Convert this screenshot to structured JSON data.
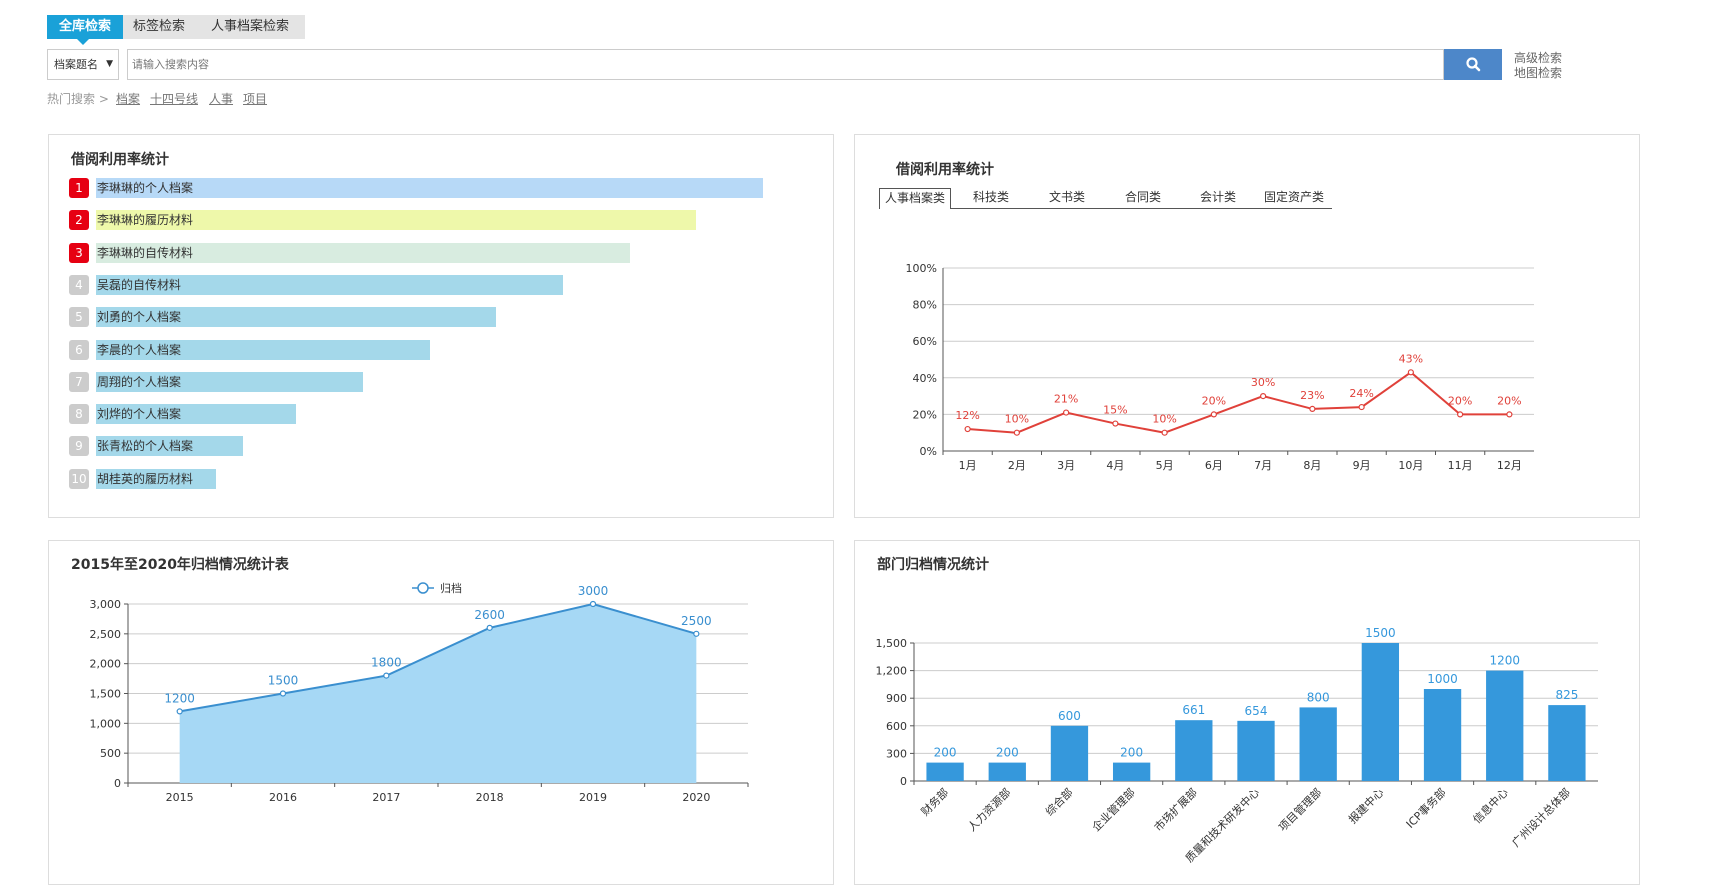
{
  "search": {
    "tabs": [
      {
        "label": "全库检索",
        "active": true
      },
      {
        "label": "标签检索",
        "active": false
      },
      {
        "label": "人事档案检索",
        "active": false
      }
    ],
    "field_select": "档案题名",
    "placeholder": "请输入搜索内容",
    "search_icon": "search-icon",
    "advanced_label": "高级检索",
    "map_label": "地图检索",
    "hot_label": "热门搜索 >",
    "hot_items": [
      "档案",
      "十四号线",
      "人事",
      "项目"
    ]
  },
  "ranking_panel": {
    "title": "借阅利用率统计",
    "items": [
      {
        "rank": "1",
        "label": "李琳琳的个人档案",
        "value": 1.0,
        "bar_color": "#b7d9f7",
        "badge_color": "#e60012"
      },
      {
        "rank": "2",
        "label": "李琳琳的履历材料",
        "value": 0.9,
        "bar_color": "#eef8aa",
        "badge_color": "#e60012"
      },
      {
        "rank": "3",
        "label": "李琳琳的自传材料",
        "value": 0.8,
        "bar_color": "#d8ece0",
        "badge_color": "#e60012"
      },
      {
        "rank": "4",
        "label": "吴磊的自传材料",
        "value": 0.7,
        "bar_color": "#a4d8ea",
        "badge_color": "#cccccc"
      },
      {
        "rank": "5",
        "label": "刘勇的个人档案",
        "value": 0.6,
        "bar_color": "#a4d8ea",
        "badge_color": "#cccccc"
      },
      {
        "rank": "6",
        "label": "李晨的个人档案",
        "value": 0.5,
        "bar_color": "#a4d8ea",
        "badge_color": "#cccccc"
      },
      {
        "rank": "7",
        "label": "周翔的个人档案",
        "value": 0.4,
        "bar_color": "#a4d8ea",
        "badge_color": "#cccccc"
      },
      {
        "rank": "8",
        "label": "刘烨的个人档案",
        "value": 0.3,
        "bar_color": "#a4d8ea",
        "badge_color": "#cccccc"
      },
      {
        "rank": "9",
        "label": "张青松的个人档案",
        "value": 0.22,
        "bar_color": "#a4d8ea",
        "badge_color": "#cccccc"
      },
      {
        "rank": "10",
        "label": "胡桂英的履历材料",
        "value": 0.18,
        "bar_color": "#a4d8ea",
        "badge_color": "#cccccc"
      }
    ]
  },
  "usage_panel": {
    "title": "借阅利用率统计",
    "tabs": [
      {
        "label": "人事档案类",
        "active": true
      },
      {
        "label": "科技类",
        "active": false
      },
      {
        "label": "文书类",
        "active": false
      },
      {
        "label": "合同类",
        "active": false
      },
      {
        "label": "会计类",
        "active": false
      },
      {
        "label": "固定资产类",
        "active": false
      }
    ]
  },
  "archive_panel": {
    "title": "2015年至2020年归档情况统计表"
  },
  "dept_panel": {
    "title": "部门归档情况统计"
  },
  "chart_data": [
    {
      "type": "line",
      "categories": [
        "1月",
        "2月",
        "3月",
        "4月",
        "5月",
        "6月",
        "7月",
        "8月",
        "9月",
        "10月",
        "11月",
        "12月"
      ],
      "values": [
        12,
        10,
        21,
        15,
        10,
        20,
        30,
        23,
        24,
        43,
        20,
        20
      ],
      "data_labels": [
        "12%",
        "10%",
        "21%",
        "15%",
        "10%",
        "20%",
        "30%",
        "23%",
        "24%",
        "43%",
        "20%",
        "20%"
      ],
      "yticks": [
        "0%",
        "20%",
        "40%",
        "60%",
        "80%",
        "100%"
      ],
      "ylim": [
        0,
        100
      ],
      "color": "#e0413a",
      "grid": true
    },
    {
      "type": "area",
      "categories": [
        "2015",
        "2016",
        "2017",
        "2018",
        "2019",
        "2020"
      ],
      "series": [
        {
          "name": "归档",
          "values": [
            1200,
            1500,
            1800,
            2600,
            3000,
            2500
          ]
        }
      ],
      "yticks": [
        "0",
        "500",
        "1,000",
        "1,500",
        "2,000",
        "2,500",
        "3,000"
      ],
      "ylim": [
        0,
        3000
      ],
      "line_color": "#3a8fcf",
      "fill_color": "#a6d8f5",
      "legend": "top-center",
      "grid": true
    },
    {
      "type": "bar",
      "categories": [
        "财务部",
        "人力资源部",
        "综合部",
        "企业管理部",
        "市场扩展部",
        "质量和技术研发中心",
        "项目管理部",
        "报建中心",
        "ICP事务部",
        "信息中心",
        "广州设计总体部"
      ],
      "values": [
        200,
        200,
        600,
        200,
        661,
        654,
        800,
        1500,
        1000,
        1200,
        825
      ],
      "yticks": [
        "0",
        "300",
        "600",
        "900",
        "1,200",
        "1,500"
      ],
      "ylim": [
        0,
        1500
      ],
      "color": "#3598dc",
      "grid": true
    }
  ]
}
